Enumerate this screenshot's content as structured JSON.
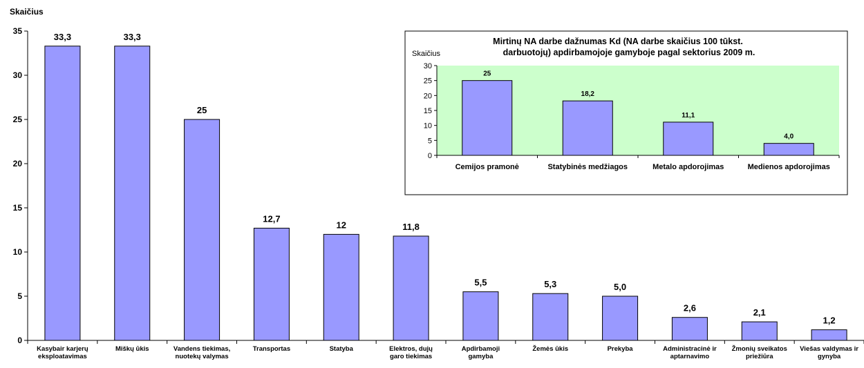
{
  "colors": {
    "bar_fill": "#9999ff",
    "bar_stroke": "#000000",
    "inset_plot_bg": "#ccffcc"
  },
  "chart_data": [
    {
      "type": "bar",
      "title": "",
      "ylabel": "Skaičius",
      "ylim": [
        0,
        35
      ],
      "yticks": [
        0,
        5,
        10,
        15,
        20,
        25,
        30,
        35
      ],
      "grid": false,
      "categories": [
        [
          "Kasybair karjerų",
          "eksploatavimas"
        ],
        [
          "Miškų ūkis"
        ],
        [
          "Vandens tiekimas,",
          "nuotekų valymas"
        ],
        [
          "Transportas"
        ],
        [
          "Statyba"
        ],
        [
          "Elektros, dujų",
          "garo tiekimas"
        ],
        [
          "Apdirbamoji",
          "gamyba"
        ],
        [
          "Žemės  ūkis"
        ],
        [
          "Prekyba"
        ],
        [
          "Administracinė ir",
          "aptarnavimo"
        ],
        [
          "Žmonių sveikatos",
          "priežiūra"
        ],
        [
          "Viešas valdymas ir",
          "gynyba"
        ]
      ],
      "values": [
        33.3,
        33.3,
        25,
        12.7,
        12,
        11.8,
        5.5,
        5.3,
        5.0,
        2.6,
        2.1,
        1.2
      ],
      "value_labels": [
        "33,3",
        "33,3",
        "25",
        "12,7",
        "12",
        "11,8",
        "5,5",
        "5,3",
        "5,0",
        "2,6",
        "2,1",
        "1,2"
      ]
    },
    {
      "type": "bar",
      "title": [
        "Mirtinų NA darbe dažnumas Kd (NA darbe skaičius 100 tūkst.",
        "darbuotojų) apdirbamojoje gamyboje pagal sektorius 2009 m."
      ],
      "ylabel": "Skaičius",
      "ylim": [
        0,
        30
      ],
      "yticks": [
        0,
        5,
        10,
        15,
        20,
        25,
        30
      ],
      "grid": false,
      "categories": [
        "Cemijos pramonė",
        "Statybinės medžiagos",
        "Metalo apdorojimas",
        "Medienos apdorojimas"
      ],
      "values": [
        25,
        18.2,
        11.1,
        4.0
      ],
      "value_labels": [
        "25",
        "18,2",
        "11,1",
        "4,0"
      ]
    }
  ]
}
